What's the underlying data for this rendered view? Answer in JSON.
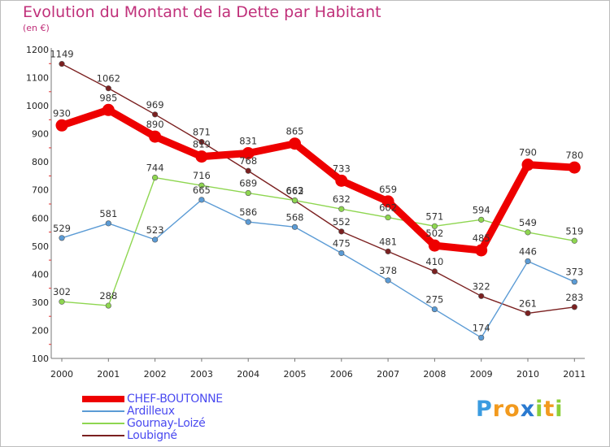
{
  "title": "Evolution du Montant de la Dette par Habitant",
  "subtitle": "(en €)",
  "brand": "Proxiti",
  "chart_data": {
    "type": "line",
    "categories": [
      "2000",
      "2001",
      "2002",
      "2003",
      "2004",
      "2005",
      "2006",
      "2007",
      "2008",
      "2009",
      "2010",
      "2011"
    ],
    "ylim": [
      100,
      1200
    ],
    "yticks": [
      100,
      200,
      300,
      400,
      500,
      600,
      700,
      800,
      900,
      1000,
      1100,
      1200
    ],
    "grid": false,
    "legend_position": "bottom-left",
    "series": [
      {
        "name": "CHEF-BOUTONNE",
        "color": "#ee0000",
        "values": [
          930,
          985,
          890,
          819,
          831,
          865,
          733,
          659,
          502,
          485,
          790,
          780
        ]
      },
      {
        "name": "Ardilleux",
        "color": "#5b9bd5",
        "values": [
          529,
          581,
          523,
          665,
          586,
          568,
          475,
          378,
          275,
          174,
          446,
          373
        ]
      },
      {
        "name": "Gournay-Loizé",
        "color": "#8ed650",
        "values": [
          302,
          288,
          744,
          716,
          689,
          663,
          632,
          602,
          571,
          594,
          549,
          519
        ]
      },
      {
        "name": "Loubigné",
        "color": "#7b2020",
        "values": [
          1149,
          1062,
          969,
          871,
          768,
          662,
          552,
          481,
          410,
          322,
          261,
          283
        ]
      }
    ]
  }
}
